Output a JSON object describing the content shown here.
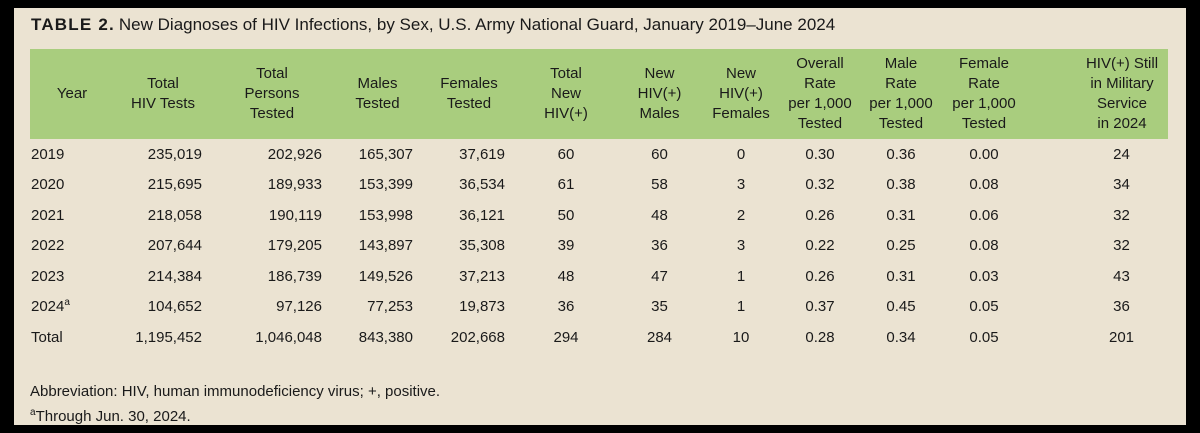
{
  "title": {
    "label": "TABLE 2.",
    "text": "New Diagnoses of HIV Infections, by Sex, U.S. Army National Guard, January 2019–June 2024"
  },
  "colors": {
    "frame": "#000000",
    "page_background": "#EBE3D2",
    "header_background": "#A9CD7E",
    "text": "#1A1A1A"
  },
  "table": {
    "columns": [
      "Year",
      "Total\nHIV Tests",
      "Total\nPersons\nTested",
      "Males\nTested",
      "Females\nTested",
      "Total\nNew\nHIV(+)",
      "New\nHIV(+)\nMales",
      "New\nHIV(+)\nFemales",
      "Overall\nRate\nper 1,000\nTested",
      "Male\nRate\nper 1,000\nTested",
      "Female\nRate\nper 1,000\nTested",
      "HIV(+) Still\nin Military\nService\nin 2024"
    ],
    "rows": [
      {
        "year": "2019",
        "note": "",
        "values": [
          "235,019",
          "202,926",
          "165,307",
          "37,619",
          "60",
          "60",
          "0",
          "0.30",
          "0.36",
          "0.00",
          "24"
        ]
      },
      {
        "year": "2020",
        "note": "",
        "values": [
          "215,695",
          "189,933",
          "153,399",
          "36,534",
          "61",
          "58",
          "3",
          "0.32",
          "0.38",
          "0.08",
          "34"
        ]
      },
      {
        "year": "2021",
        "note": "",
        "values": [
          "218,058",
          "190,119",
          "153,998",
          "36,121",
          "50",
          "48",
          "2",
          "0.26",
          "0.31",
          "0.06",
          "32"
        ]
      },
      {
        "year": "2022",
        "note": "",
        "values": [
          "207,644",
          "179,205",
          "143,897",
          "35,308",
          "39",
          "36",
          "3",
          "0.22",
          "0.25",
          "0.08",
          "32"
        ]
      },
      {
        "year": "2023",
        "note": "",
        "values": [
          "214,384",
          "186,739",
          "149,526",
          "37,213",
          "48",
          "47",
          "1",
          "0.26",
          "0.31",
          "0.03",
          "43"
        ]
      },
      {
        "year": "2024",
        "note": "a",
        "values": [
          "104,652",
          "97,126",
          "77,253",
          "19,873",
          "36",
          "35",
          "1",
          "0.37",
          "0.45",
          "0.05",
          "36"
        ]
      },
      {
        "year": "Total",
        "note": "",
        "values": [
          "1,195,452",
          "1,046,048",
          "843,380",
          "202,668",
          "294",
          "284",
          "10",
          "0.28",
          "0.34",
          "0.05",
          "201"
        ]
      }
    ]
  },
  "footnotes": [
    {
      "marker": "",
      "text": "Abbreviation: HIV, human immunodeficiency virus; +, positive."
    },
    {
      "marker": "a",
      "text": "Through Jun. 30, 2024."
    }
  ]
}
